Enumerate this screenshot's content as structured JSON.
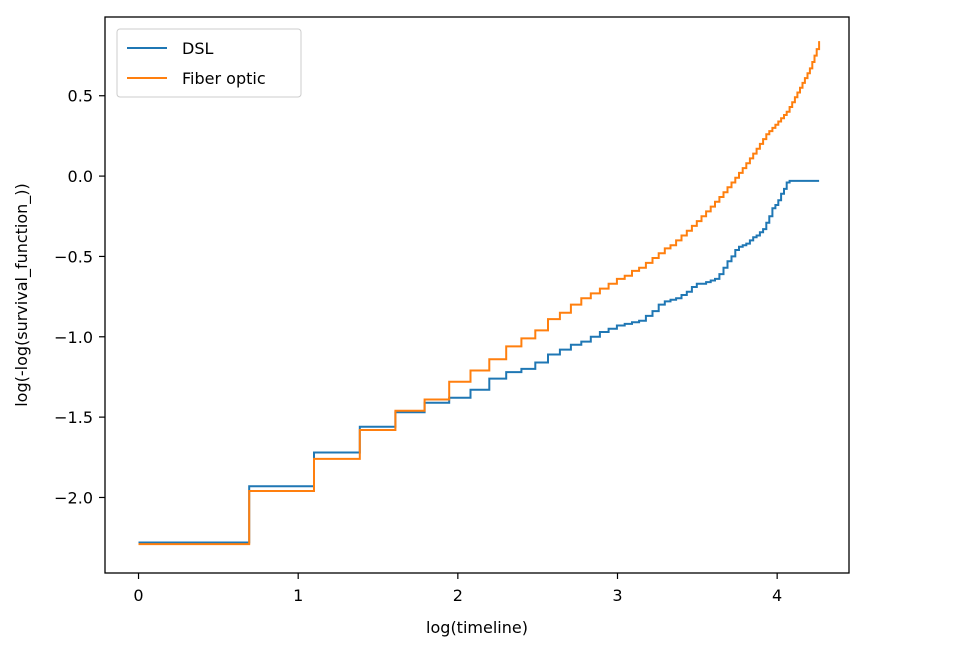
{
  "chart_data": {
    "type": "line",
    "title": "",
    "xlabel": "log(timeline)",
    "ylabel": "log(-log(survival_function_))",
    "xlim": [
      -0.21,
      4.45
    ],
    "ylim": [
      -2.47,
      0.99
    ],
    "xticks": [
      0,
      1,
      2,
      3,
      4
    ],
    "xtick_labels": [
      "0",
      "1",
      "2",
      "3",
      "4"
    ],
    "yticks": [
      -2.0,
      -1.5,
      -1.0,
      -0.5,
      0.0,
      0.5
    ],
    "ytick_labels": [
      "−2.0",
      "−1.5",
      "−1.0",
      "−0.5",
      "0.0",
      "0.5"
    ],
    "grid": false,
    "legend_position": "top-left",
    "series": [
      {
        "name": "DSL",
        "color": "#1f77b4",
        "step": "post",
        "x": [
          0,
          0.693,
          1.099,
          1.386,
          1.609,
          1.792,
          1.946,
          2.079,
          2.197,
          2.303,
          2.398,
          2.485,
          2.565,
          2.639,
          2.708,
          2.773,
          2.833,
          2.89,
          2.944,
          2.996,
          3.045,
          3.091,
          3.135,
          3.178,
          3.219,
          3.258,
          3.296,
          3.332,
          3.367,
          3.401,
          3.434,
          3.466,
          3.497,
          3.526,
          3.555,
          3.584,
          3.611,
          3.638,
          3.664,
          3.689,
          3.714,
          3.738,
          3.761,
          3.784,
          3.807,
          3.829,
          3.85,
          3.871,
          3.892,
          3.912,
          3.932,
          3.951,
          3.97,
          3.989,
          4.007,
          4.025,
          4.043,
          4.06,
          4.078,
          4.094,
          4.111,
          4.127,
          4.143,
          4.159,
          4.174,
          4.19,
          4.205,
          4.22,
          4.234,
          4.248,
          4.263
        ],
        "y": [
          -2.28,
          -1.93,
          -1.72,
          -1.56,
          -1.47,
          -1.41,
          -1.38,
          -1.33,
          -1.26,
          -1.22,
          -1.2,
          -1.16,
          -1.11,
          -1.08,
          -1.05,
          -1.03,
          -1.0,
          -0.97,
          -0.95,
          -0.93,
          -0.92,
          -0.91,
          -0.9,
          -0.87,
          -0.84,
          -0.8,
          -0.78,
          -0.77,
          -0.76,
          -0.74,
          -0.72,
          -0.69,
          -0.67,
          -0.67,
          -0.66,
          -0.65,
          -0.64,
          -0.61,
          -0.57,
          -0.53,
          -0.5,
          -0.46,
          -0.44,
          -0.43,
          -0.42,
          -0.4,
          -0.38,
          -0.37,
          -0.35,
          -0.33,
          -0.29,
          -0.25,
          -0.2,
          -0.18,
          -0.15,
          -0.11,
          -0.08,
          -0.04,
          -0.03,
          -0.03,
          -0.03,
          -0.03,
          -0.03,
          -0.03,
          -0.03,
          -0.03,
          -0.03,
          -0.03,
          -0.03,
          -0.03,
          -0.03
        ]
      },
      {
        "name": "Fiber optic",
        "color": "#ff7f0e",
        "step": "post",
        "x": [
          0,
          0.693,
          1.099,
          1.386,
          1.609,
          1.792,
          1.946,
          2.079,
          2.197,
          2.303,
          2.398,
          2.485,
          2.565,
          2.639,
          2.708,
          2.773,
          2.833,
          2.89,
          2.944,
          2.996,
          3.045,
          3.091,
          3.135,
          3.178,
          3.219,
          3.258,
          3.296,
          3.332,
          3.367,
          3.401,
          3.434,
          3.466,
          3.497,
          3.526,
          3.555,
          3.584,
          3.611,
          3.638,
          3.664,
          3.689,
          3.714,
          3.738,
          3.761,
          3.784,
          3.807,
          3.829,
          3.85,
          3.871,
          3.892,
          3.912,
          3.932,
          3.951,
          3.97,
          3.989,
          4.007,
          4.025,
          4.043,
          4.06,
          4.078,
          4.094,
          4.111,
          4.127,
          4.143,
          4.159,
          4.174,
          4.19,
          4.205,
          4.22,
          4.234,
          4.248,
          4.263
        ],
        "y": [
          -2.29,
          -1.96,
          -1.76,
          -1.58,
          -1.46,
          -1.39,
          -1.28,
          -1.21,
          -1.14,
          -1.06,
          -1.01,
          -0.96,
          -0.89,
          -0.85,
          -0.8,
          -0.76,
          -0.73,
          -0.7,
          -0.67,
          -0.64,
          -0.62,
          -0.59,
          -0.57,
          -0.54,
          -0.51,
          -0.48,
          -0.45,
          -0.43,
          -0.4,
          -0.37,
          -0.34,
          -0.31,
          -0.28,
          -0.25,
          -0.22,
          -0.19,
          -0.16,
          -0.13,
          -0.1,
          -0.07,
          -0.04,
          -0.01,
          0.02,
          0.05,
          0.08,
          0.11,
          0.14,
          0.17,
          0.2,
          0.23,
          0.26,
          0.28,
          0.3,
          0.32,
          0.34,
          0.36,
          0.38,
          0.4,
          0.43,
          0.46,
          0.49,
          0.52,
          0.55,
          0.58,
          0.61,
          0.64,
          0.67,
          0.71,
          0.75,
          0.79,
          0.84
        ]
      }
    ]
  }
}
